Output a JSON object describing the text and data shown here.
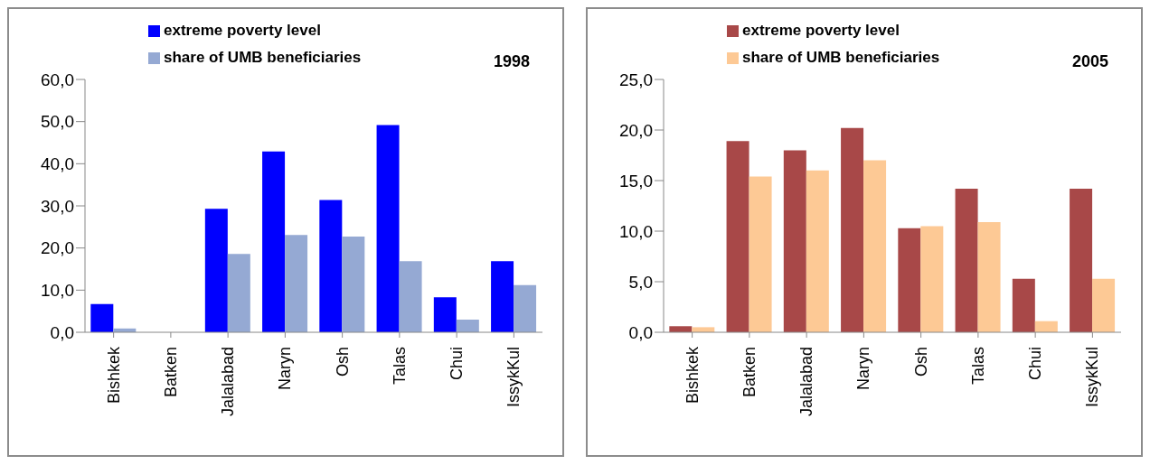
{
  "chart_data": [
    {
      "type": "bar",
      "title": "1998",
      "categories": [
        "Bishkek",
        "Batken",
        "Jalalabad",
        "Naryn",
        "Osh",
        "Talas",
        "Chui",
        "IssykKul"
      ],
      "series": [
        {
          "name": "extreme poverty level",
          "color": "#0000ff",
          "values": [
            6.7,
            null,
            29.3,
            42.9,
            31.4,
            49.2,
            8.3,
            16.9
          ]
        },
        {
          "name": "share of UMB beneficiaries",
          "color": "#95a9d3",
          "values": [
            0.9,
            null,
            18.6,
            23.1,
            22.7,
            16.9,
            3.0,
            11.2
          ]
        }
      ],
      "ylim": [
        0,
        60
      ],
      "yticks": [
        {
          "value": 0,
          "label": "0,0"
        },
        {
          "value": 10,
          "label": "10,0"
        },
        {
          "value": 20,
          "label": "20,0"
        },
        {
          "value": 30,
          "label": "30,0"
        },
        {
          "value": 40,
          "label": "40,0"
        },
        {
          "value": 50,
          "label": "50,0"
        },
        {
          "value": 60,
          "label": "60,0"
        }
      ],
      "grid": false,
      "legend": "top"
    },
    {
      "type": "bar",
      "title": "2005",
      "categories": [
        "Bishkek",
        "Batken",
        "Jalalabad",
        "Naryn",
        "Osh",
        "Talas",
        "Chui",
        "IssykKul"
      ],
      "series": [
        {
          "name": "extreme poverty level",
          "color": "#a84848",
          "values": [
            0.6,
            18.9,
            18.0,
            20.2,
            10.3,
            14.2,
            5.3,
            14.2
          ]
        },
        {
          "name": "share of UMB beneficiaries",
          "color": "#fdc995",
          "values": [
            0.5,
            15.4,
            16.0,
            17.0,
            10.5,
            10.9,
            1.1,
            5.3
          ]
        }
      ],
      "ylim": [
        0,
        25
      ],
      "yticks": [
        {
          "value": 0,
          "label": "0,0"
        },
        {
          "value": 5,
          "label": "5,0"
        },
        {
          "value": 10,
          "label": "10,0"
        },
        {
          "value": 15,
          "label": "15,0"
        },
        {
          "value": 20,
          "label": "20,0"
        },
        {
          "value": 25,
          "label": "25,0"
        }
      ],
      "grid": false,
      "legend": "top"
    }
  ]
}
